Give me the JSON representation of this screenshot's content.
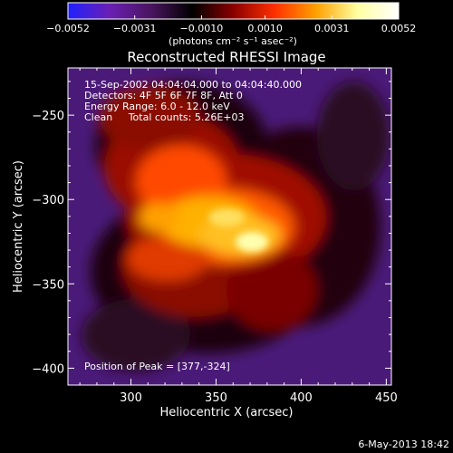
{
  "chart_data": {
    "type": "heatmap",
    "title": "Reconstructed RHESSI Image",
    "xlabel": "Heliocentric X (arcsec)",
    "ylabel": "Heliocentric Y (arcsec)",
    "xlim": [
      263,
      453
    ],
    "ylim": [
      -410,
      -222
    ],
    "x_ticks": [
      300,
      350,
      400,
      450
    ],
    "x_tick_labels": [
      "300",
      "350",
      "400",
      "450"
    ],
    "y_ticks": [
      -250,
      -300,
      -350,
      -400
    ],
    "y_tick_labels": [
      "−250",
      "−300",
      "−350",
      "−400"
    ],
    "colorbar": {
      "range": [
        -0.0052,
        0.0052
      ],
      "ticks": [
        -0.0052,
        -0.0031,
        -0.001,
        0.001,
        0.0031,
        0.0052
      ],
      "tick_labels": [
        "−0.0052",
        "−0.0031",
        "−0.0010",
        "0.0010",
        "0.0031",
        "0.0052"
      ],
      "unit_label": "(photons cm⁻² s⁻¹ asec⁻²)",
      "colormap": [
        "#2020ff",
        "#6a1fb5",
        "#4a1560",
        "#000000",
        "#8a0000",
        "#ff3000",
        "#ffa000",
        "#ffffa0",
        "#ffffff"
      ]
    },
    "annotations": {
      "line1": "15-Sep-2002 04:04:04.000 to 04:04:40.000",
      "line2": "Detectors: 4F 5F 6F 7F 8F, Att 0",
      "line3": "Energy Range: 6.0 - 12.0 keV",
      "line4": "Clean     Total counts: 5.26E+03",
      "peak": "Position of Peak = [377,-324]"
    },
    "peak": {
      "x": 377,
      "y": -324
    },
    "grid": false
  },
  "footer": {
    "date": "6-May-2013 18:42"
  }
}
